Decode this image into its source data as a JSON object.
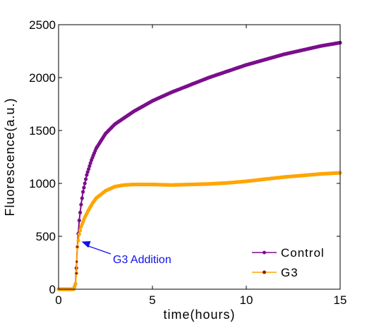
{
  "chart_data": {
    "type": "line",
    "xlabel": "time(hours)",
    "ylabel": "Fluorescence(a.u.)",
    "xlim": [
      0,
      15
    ],
    "ylim": [
      0,
      2500
    ],
    "xticks": [
      0,
      5,
      10,
      15
    ],
    "yticks": [
      0,
      500,
      1000,
      1500,
      2000,
      2500
    ],
    "xtick_labels": [
      "0",
      "5",
      "10",
      "15"
    ],
    "ytick_labels": [
      "0",
      "500",
      "1000",
      "1500",
      "2000",
      "2500"
    ],
    "grid": false,
    "legend_position": "bottom-right",
    "series": [
      {
        "name": "Control",
        "color": "#7b0f8c",
        "marker": "circle",
        "x": [
          0,
          0.2,
          0.4,
          0.6,
          0.8,
          0.9,
          0.95,
          1.0,
          1.1,
          1.2,
          1.3,
          1.5,
          1.75,
          2.0,
          2.5,
          3.0,
          4.0,
          5.0,
          6.0,
          7.0,
          8.0,
          9.0,
          10.0,
          11.0,
          12.0,
          13.0,
          14.0,
          15.0
        ],
        "y": [
          0,
          0,
          0,
          0,
          0,
          50,
          200,
          400,
          650,
          800,
          920,
          1080,
          1220,
          1330,
          1470,
          1560,
          1680,
          1780,
          1860,
          1930,
          2000,
          2060,
          2120,
          2170,
          2220,
          2260,
          2300,
          2330
        ]
      },
      {
        "name": "G3",
        "color": "#ffa500",
        "marker": "circle",
        "x": [
          0,
          0.2,
          0.4,
          0.6,
          0.8,
          0.9,
          0.95,
          1.0,
          1.1,
          1.2,
          1.4,
          1.6,
          1.8,
          2.0,
          2.5,
          3.0,
          3.5,
          4.0,
          5.0,
          6.0,
          7.0,
          8.0,
          9.0,
          10.0,
          11.0,
          12.0,
          13.0,
          14.0,
          15.0
        ],
        "y": [
          0,
          0,
          0,
          0,
          0,
          50,
          150,
          400,
          520,
          590,
          680,
          750,
          810,
          860,
          930,
          970,
          985,
          990,
          990,
          985,
          990,
          995,
          1005,
          1020,
          1040,
          1060,
          1075,
          1090,
          1100
        ]
      }
    ],
    "annotations": [
      {
        "text": "G3 Addition",
        "x": 1.0,
        "y": 450,
        "color": "#1010ee"
      }
    ]
  }
}
